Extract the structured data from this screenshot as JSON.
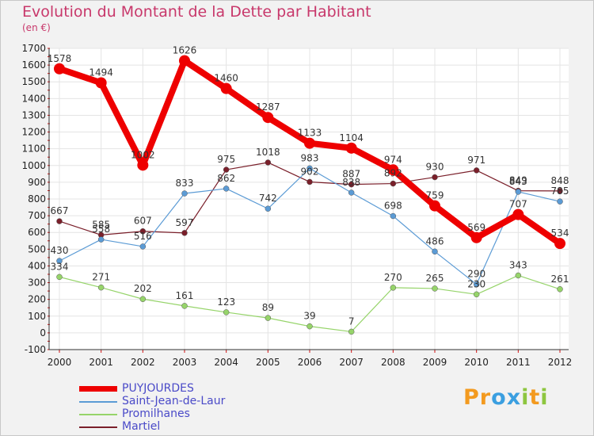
{
  "chart_data": {
    "type": "line",
    "title": "Evolution du Montant de la Dette par Habitant",
    "subtitle": "(en €)",
    "xlabel": "",
    "ylabel": "",
    "categories": [
      "2000",
      "2001",
      "2002",
      "2003",
      "2004",
      "2005",
      "2006",
      "2007",
      "2008",
      "2009",
      "2010",
      "2011",
      "2012"
    ],
    "ylim": [
      -100,
      1700
    ],
    "yticks": [
      -100,
      0,
      100,
      200,
      300,
      400,
      500,
      600,
      700,
      800,
      900,
      1000,
      1100,
      1200,
      1300,
      1400,
      1500,
      1600,
      1700
    ],
    "grid": true,
    "legend_position": "bottom-left",
    "series": [
      {
        "name": "Martiel",
        "color": "#7a1f2a",
        "values": [
          667,
          585,
          607,
          597,
          975,
          1018,
          902,
          887,
          892,
          930,
          971,
          849,
          848
        ]
      },
      {
        "name": "Saint-Jean-de-Laur",
        "color": "#5b9bd5",
        "values": [
          430,
          558,
          516,
          833,
          862,
          742,
          983,
          838,
          698,
          486,
          290,
          843,
          785
        ]
      },
      {
        "name": "Promilhanes",
        "color": "#96d46a",
        "values": [
          334,
          271,
          202,
          161,
          123,
          89,
          39,
          7,
          270,
          265,
          230,
          343,
          261
        ]
      },
      {
        "name": "PUYJOURDES",
        "color": "#ee0000",
        "values": [
          1578,
          1494,
          1002,
          1626,
          1460,
          1287,
          1133,
          1104,
          974,
          759,
          569,
          707,
          534
        ]
      }
    ],
    "legend_order": [
      "PUYJOURDES",
      "Saint-Jean-de-Laur",
      "Promilhanes",
      "Martiel"
    ]
  },
  "logo": {
    "text": "Proxiti",
    "letters": [
      {
        "ch": "P",
        "color": "#f39a1f"
      },
      {
        "ch": "r",
        "color": "#f39a1f"
      },
      {
        "ch": "o",
        "color": "#3b9fe0"
      },
      {
        "ch": "x",
        "color": "#3b9fe0"
      },
      {
        "ch": "i",
        "color": "#8dc63f"
      },
      {
        "ch": "t",
        "color": "#f39a1f"
      },
      {
        "ch": "i",
        "color": "#8dc63f"
      }
    ]
  }
}
